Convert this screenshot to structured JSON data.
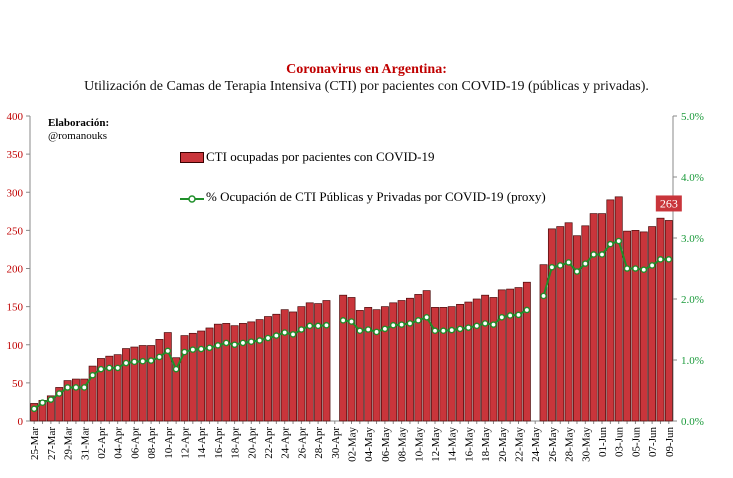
{
  "title": "Coronavirus en Argentina:",
  "subtitle": "Utilización de Camas de Terapia Intensiva (CTI) por pacientes con COVID-19 (públicas y privadas).",
  "credit": {
    "heading": "Elaboración:",
    "handle": "@romanouks"
  },
  "colors": {
    "bar": "#c9353b",
    "bar_edge": "#4a0a0a",
    "line": "#1f8f2a",
    "marker_fill": "#ffffff",
    "left_axis": "#c00000",
    "right_axis": "#1a9a3a",
    "callout_bg": "#c9353b"
  },
  "chart_data": {
    "type": "bar",
    "categories": [
      "25-Mar",
      "26-Mar",
      "27-Mar",
      "28-Mar",
      "29-Mar",
      "30-Mar",
      "31-Mar",
      "01-Apr",
      "02-Apr",
      "03-Apr",
      "04-Apr",
      "05-Apr",
      "06-Apr",
      "07-Apr",
      "08-Apr",
      "09-Apr",
      "10-Apr",
      "11-Apr",
      "12-Apr",
      "13-Apr",
      "14-Apr",
      "15-Apr",
      "16-Apr",
      "17-Apr",
      "18-Apr",
      "19-Apr",
      "20-Apr",
      "21-Apr",
      "22-Apr",
      "23-Apr",
      "24-Apr",
      "25-Apr",
      "26-Apr",
      "27-Apr",
      "28-Apr",
      "29-Apr",
      "30-Apr",
      "01-May",
      "02-May",
      "03-May",
      "04-May",
      "05-May",
      "06-May",
      "07-May",
      "08-May",
      "09-May",
      "10-May",
      "11-May",
      "12-May",
      "13-May",
      "14-May",
      "15-May",
      "16-May",
      "17-May",
      "18-May",
      "19-May",
      "20-May",
      "21-May",
      "22-May",
      "23-May",
      "24-May",
      "25-May",
      "26-May",
      "27-May",
      "28-May",
      "29-May",
      "30-May",
      "31-May",
      "01-Jun",
      "02-Jun",
      "03-Jun",
      "04-Jun",
      "05-Jun",
      "06-Jun",
      "07-Jun",
      "08-Jun",
      "09-Jun"
    ],
    "x_tick_labels": [
      "25-Mar",
      "27-Mar",
      "29-Mar",
      "31-Mar",
      "02-Apr",
      "04-Apr",
      "06-Apr",
      "08-Apr",
      "10-Apr",
      "12-Apr",
      "14-Apr",
      "16-Apr",
      "18-Apr",
      "20-Apr",
      "22-Apr",
      "24-Apr",
      "26-Apr",
      "28-Apr",
      "30-Apr",
      "02-May",
      "04-May",
      "06-May",
      "08-May",
      "10-May",
      "12-May",
      "14-May",
      "16-May",
      "18-May",
      "20-May",
      "22-May",
      "24-May",
      "26-May",
      "28-May",
      "30-May",
      "01-Jun",
      "03-Jun",
      "05-Jun",
      "07-Jun",
      "09-Jun"
    ],
    "series": [
      {
        "name": "CTI ocupadas por pacientes con COVID-19",
        "axis": "left",
        "values": [
          23,
          27,
          33,
          44,
          53,
          55,
          55,
          72,
          82,
          85,
          87,
          95,
          97,
          99,
          99,
          107,
          116,
          83,
          112,
          115,
          118,
          122,
          127,
          128,
          125,
          128,
          130,
          133,
          137,
          140,
          146,
          143,
          150,
          155,
          154,
          158,
          null,
          165,
          162,
          145,
          149,
          146,
          150,
          155,
          158,
          161,
          166,
          171,
          149,
          149,
          150,
          153,
          156,
          160,
          165,
          162,
          172,
          173,
          175,
          182,
          null,
          205,
          252,
          255,
          260,
          243,
          256,
          272,
          272,
          290,
          294,
          249,
          250,
          248,
          255,
          266,
          263
        ]
      },
      {
        "name": "% Ocupación de CTI Públicas y Privadas por COVID-19 (proxy)",
        "axis": "right",
        "values": [
          0.2,
          0.3,
          0.35,
          0.45,
          0.55,
          0.55,
          0.55,
          0.75,
          0.85,
          0.87,
          0.87,
          0.95,
          0.97,
          0.98,
          0.99,
          1.05,
          1.15,
          0.85,
          1.13,
          1.17,
          1.18,
          1.2,
          1.24,
          1.28,
          1.25,
          1.28,
          1.3,
          1.32,
          1.36,
          1.4,
          1.45,
          1.42,
          1.5,
          1.56,
          1.56,
          1.57,
          null,
          1.65,
          1.63,
          1.48,
          1.5,
          1.46,
          1.51,
          1.57,
          1.58,
          1.6,
          1.65,
          1.7,
          1.48,
          1.48,
          1.49,
          1.51,
          1.53,
          1.56,
          1.6,
          1.58,
          1.7,
          1.73,
          1.74,
          1.82,
          null,
          2.05,
          2.52,
          2.55,
          2.6,
          2.45,
          2.58,
          2.73,
          2.73,
          2.9,
          2.95,
          2.5,
          2.5,
          2.48,
          2.55,
          2.65,
          2.65
        ]
      }
    ],
    "y_left": {
      "ylim": [
        0,
        400
      ],
      "ticks": [
        "0",
        "50",
        "100",
        "150",
        "200",
        "250",
        "300",
        "350",
        "400"
      ]
    },
    "y_right": {
      "ylim": [
        0,
        5
      ],
      "ticks": [
        "0.0%",
        "1.0%",
        "2.0%",
        "3.0%",
        "4.0%",
        "5.0%"
      ]
    },
    "callout": "263",
    "legend_position": "top-center",
    "grid": false
  }
}
